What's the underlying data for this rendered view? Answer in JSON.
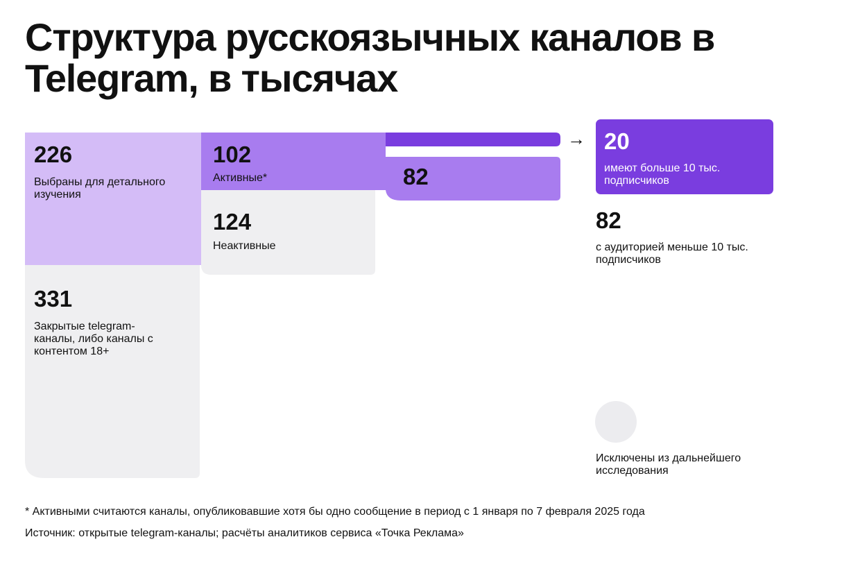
{
  "title": "Структура русскоязычных каналов в Telegram, в тысячах",
  "colors": {
    "light_purple": "#d4bcf7",
    "mid_purple": "#a87cef",
    "dark_purple": "#7a3ddf",
    "gray": "#efeff1",
    "excluded": "#ececef"
  },
  "chart_data": {
    "type": "sankey",
    "nodes": [
      {
        "id": "selected",
        "value": 226,
        "label": "Выбраны для детального изучения"
      },
      {
        "id": "closed",
        "value": 331,
        "label": "Закрытые telegram-каналы, либо каналы с контентом 18+"
      },
      {
        "id": "active",
        "value": 102,
        "label": "Активные*"
      },
      {
        "id": "inactive",
        "value": 124,
        "label": "Неактивные"
      },
      {
        "id": "large",
        "value": 20,
        "label": "имеют больше 10 тыс. подписчиков"
      },
      {
        "id": "small",
        "value": 82,
        "label": "с аудиторией меньше 10 тыс. подписчиков"
      }
    ],
    "links": [
      {
        "source": "selected",
        "target": "active",
        "value": 102
      },
      {
        "source": "selected",
        "target": "inactive",
        "value": 124
      },
      {
        "source": "active",
        "target": "large",
        "value": 20
      },
      {
        "source": "active",
        "target": "small",
        "value": 82
      }
    ],
    "legend": [
      {
        "label": "Исключены из дальнейшего исследования",
        "color": "#ececef"
      }
    ]
  },
  "labels": {
    "selected_value": "226",
    "selected_text": "Выбраны для детального изучения",
    "closed_value": "331",
    "closed_text": "Закрытые telegram-каналы, либо каналы с контентом 18+",
    "active_value": "102",
    "active_text": "Активные*",
    "inactive_value": "124",
    "inactive_text": "Неактивные",
    "small_flow_value": "82",
    "large_value": "20",
    "large_text": "имеют больше 10 тыс. подписчиков",
    "small_value": "82",
    "small_text": "с аудиторией меньше 10 тыс. подписчиков",
    "arrow": "→",
    "excluded_text": "Исключены из дальнейшего исследования"
  },
  "footnotes": {
    "note": "* Активными считаются каналы, опубликовавшие хотя бы одно сообщение в период с 1 января по 7 февраля 2025 года",
    "source": "Источник: открытые telegram-каналы; расчёты аналитиков сервиса «Точка Реклама»"
  }
}
